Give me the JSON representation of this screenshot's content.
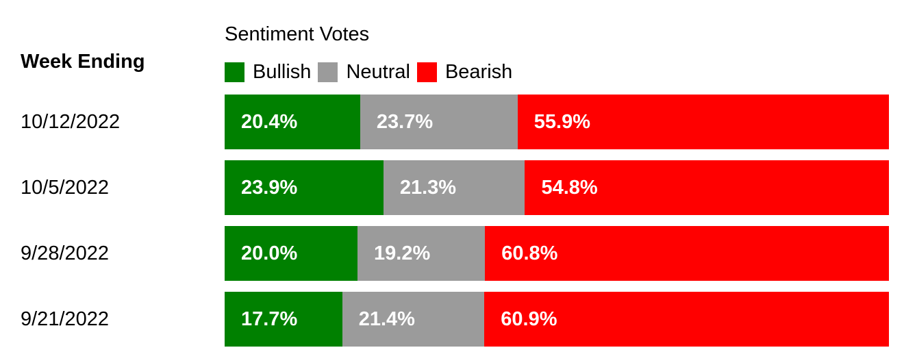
{
  "row_header": "Week Ending",
  "colors": {
    "bullish": "#008000",
    "neutral": "#9b9b9b",
    "bearish": "#ff0000"
  },
  "chart_data": {
    "type": "bar",
    "orientation": "horizontal",
    "stacked": true,
    "title": "Sentiment Votes",
    "categories": [
      "10/12/2022",
      "10/5/2022",
      "9/28/2022",
      "9/21/2022"
    ],
    "series": [
      {
        "name": "Bullish",
        "values": [
          20.4,
          23.9,
          20.0,
          17.7
        ],
        "labels": [
          "20.4%",
          "23.9%",
          "20.0%",
          "17.7%"
        ]
      },
      {
        "name": "Neutral",
        "values": [
          23.7,
          21.3,
          19.2,
          21.4
        ],
        "labels": [
          "23.7%",
          "21.3%",
          "19.2%",
          "21.4%"
        ]
      },
      {
        "name": "Bearish",
        "values": [
          55.9,
          54.8,
          60.8,
          60.9
        ],
        "labels": [
          "55.9%",
          "54.8%",
          "60.8%",
          "60.9%"
        ]
      }
    ],
    "legend_position": "top",
    "grid": false,
    "xlim": [
      0,
      100
    ]
  }
}
